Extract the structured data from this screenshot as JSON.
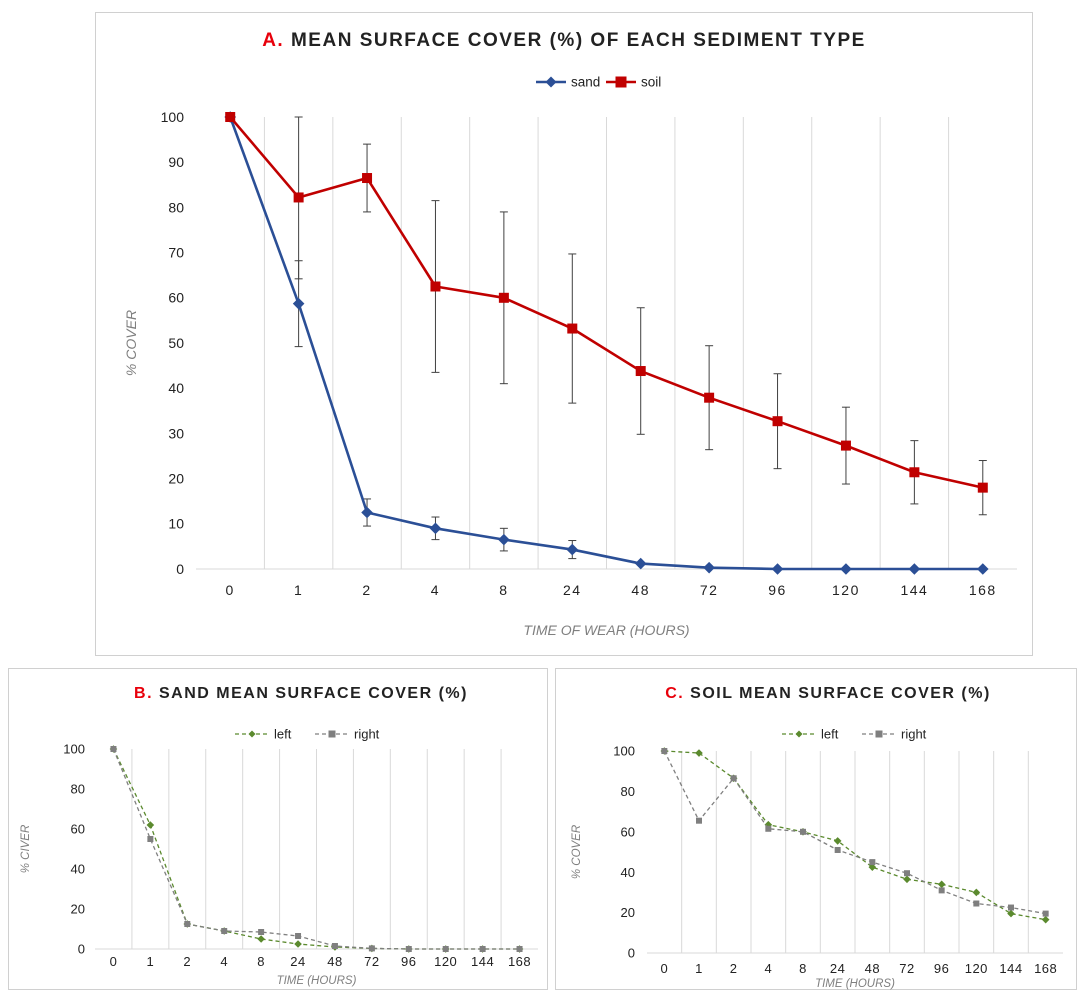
{
  "chart_data": [
    {
      "type": "line",
      "title_letter": "A.",
      "title": "MEAN SURFACE COVER (%) OF EACH SEDIMENT TYPE",
      "xlabel": "TIME OF WEAR (HOURS)",
      "ylabel": "% COVER",
      "categories": [
        "0",
        "1",
        "2",
        "4",
        "8",
        "24",
        "48",
        "72",
        "96",
        "120",
        "144",
        "168"
      ],
      "ylim": [
        0,
        100
      ],
      "yticks": [
        "0",
        "10",
        "20",
        "30",
        "40",
        "50",
        "60",
        "70",
        "80",
        "90",
        "100"
      ],
      "grid": "vertical",
      "legend": "top-center",
      "series": [
        {
          "name": "sand",
          "color": "#2b4f96",
          "marker": "diamond",
          "values": [
            100,
            58.7,
            12.5,
            9.0,
            6.5,
            4.3,
            1.2,
            0.3,
            0,
            0,
            0,
            0
          ],
          "error": [
            0,
            9.5,
            3.0,
            2.5,
            2.5,
            2.0,
            0,
            0,
            0,
            0,
            0,
            0
          ]
        },
        {
          "name": "soil",
          "color": "#c00000",
          "marker": "square",
          "values": [
            100,
            82.2,
            86.5,
            62.5,
            60.0,
            53.2,
            43.8,
            37.9,
            32.7,
            27.3,
            21.4,
            18.0
          ],
          "error": [
            0,
            18.0,
            7.5,
            19.0,
            19.0,
            16.5,
            14.0,
            11.5,
            10.5,
            8.5,
            7.0,
            6.0
          ]
        }
      ]
    },
    {
      "type": "line",
      "title_letter": "B.",
      "title": "SAND MEAN SURFACE COVER (%)",
      "xlabel": "TIME (HOURS)",
      "ylabel": "% CIVER",
      "categories": [
        "0",
        "1",
        "2",
        "4",
        "8",
        "24",
        "48",
        "72",
        "96",
        "120",
        "144",
        "168"
      ],
      "ylim": [
        0,
        100
      ],
      "yticks": [
        "0",
        "20",
        "40",
        "60",
        "80",
        "100"
      ],
      "grid": "vertical",
      "legend": "top-center",
      "series": [
        {
          "name": "left",
          "color": "#5b8a2e",
          "marker": "diamond",
          "values": [
            100,
            62,
            12.5,
            9.0,
            5.0,
            2.5,
            1.0,
            0.3,
            0,
            0,
            0,
            0
          ]
        },
        {
          "name": "right",
          "color": "#7f7f7f",
          "marker": "square",
          "values": [
            100,
            55,
            12.5,
            9.0,
            8.5,
            6.5,
            1.5,
            0.3,
            0,
            0,
            0,
            0
          ]
        }
      ]
    },
    {
      "type": "line",
      "title_letter": "C.",
      "title": "SOIL MEAN SURFACE COVER (%)",
      "xlabel": "TIME (HOURS)",
      "ylabel": "% COVER",
      "categories": [
        "0",
        "1",
        "2",
        "4",
        "8",
        "24",
        "48",
        "72",
        "96",
        "120",
        "144",
        "168"
      ],
      "ylim": [
        0,
        100
      ],
      "yticks": [
        "0",
        "20",
        "40",
        "60",
        "80",
        "100"
      ],
      "grid": "vertical",
      "legend": "top-center",
      "series": [
        {
          "name": "left",
          "color": "#5b8a2e",
          "marker": "diamond",
          "values": [
            100,
            99,
            86.5,
            63.5,
            60,
            55.5,
            42.5,
            36.5,
            34,
            30,
            19.5,
            16.5
          ]
        },
        {
          "name": "right",
          "color": "#7f7f7f",
          "marker": "square",
          "values": [
            100,
            65.5,
            86.5,
            61.5,
            60,
            51,
            45,
            39.5,
            31,
            24.5,
            22.5,
            19.5
          ]
        }
      ]
    }
  ]
}
